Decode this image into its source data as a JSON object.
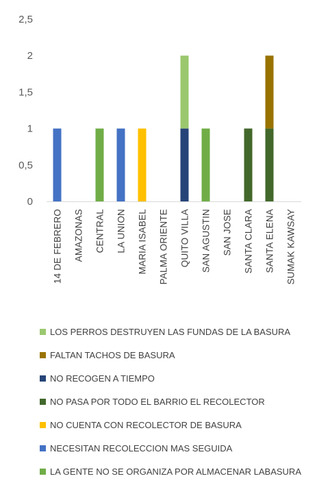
{
  "chart_data": {
    "type": "bar",
    "stacked": true,
    "categories": [
      "14 DE FEBRERO",
      "AMAZONAS",
      "CENTRAL",
      "LA UNION",
      "MARIA ISABEL",
      "PALMA ORIENTE",
      "QUITO VILLA",
      "SAN AGUSTIN",
      "SAN JOSE",
      "SANTA CLARA",
      "SANTA ELENA",
      "SUMAK KAWSAY"
    ],
    "ylim": [
      0,
      2.5
    ],
    "yticks": [
      "0",
      "0,5",
      "1",
      "1,5",
      "2",
      "2,5"
    ],
    "ytick_values": [
      0,
      0.5,
      1,
      1.5,
      2,
      2.5
    ],
    "grid": false,
    "legend_position": "bottom",
    "series": [
      {
        "name": "LA GENTE NO SE ORGANIZA POR ALMACENAR LABASURA",
        "color": "#70ad47",
        "values": [
          0,
          0,
          1,
          0,
          0,
          0,
          0,
          1,
          0,
          0,
          0,
          0
        ]
      },
      {
        "name": "NECESITAN RECOLECCION MAS SEGUIDA",
        "color": "#4472c4",
        "values": [
          1,
          0,
          0,
          1,
          0,
          0,
          0,
          0,
          0,
          0,
          0,
          0
        ]
      },
      {
        "name": "NO CUENTA CON RECOLECTOR DE BASURA",
        "color": "#ffc000",
        "values": [
          0,
          0,
          0,
          0,
          1,
          0,
          0,
          0,
          0,
          0,
          0,
          0
        ]
      },
      {
        "name": "NO PASA POR TODO EL BARRIO EL RECOLECTOR",
        "color": "#43682b",
        "values": [
          0,
          0,
          0,
          0,
          0,
          0,
          0,
          0,
          0,
          1,
          1,
          0
        ]
      },
      {
        "name": "NO RECOGEN A TIEMPO",
        "color": "#264478",
        "values": [
          0,
          0,
          0,
          0,
          0,
          0,
          1,
          0,
          0,
          0,
          0,
          0
        ]
      },
      {
        "name": "FALTAN TACHOS DE BASURA",
        "color": "#997300",
        "values": [
          0,
          0,
          0,
          0,
          0,
          0,
          0,
          0,
          0,
          0,
          1,
          0
        ]
      },
      {
        "name": "LOS PERROS DESTRUYEN LAS FUNDAS DE LA BASURA",
        "color": "#9bc86f",
        "values": [
          0,
          0,
          0,
          0,
          0,
          0,
          1,
          0,
          0,
          0,
          0,
          0
        ]
      }
    ]
  }
}
